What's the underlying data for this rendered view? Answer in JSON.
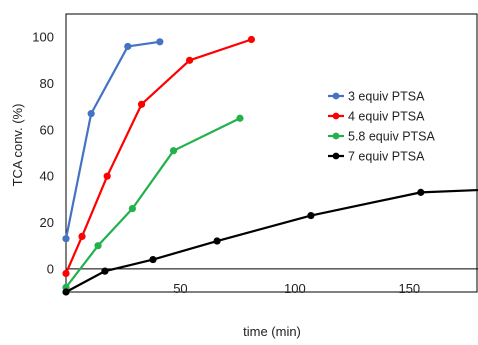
{
  "chart_data": {
    "type": "line",
    "title": "",
    "xlabel": "time (min)",
    "ylabel": "TCA conv. (%)",
    "xlim": [
      0,
      180
    ],
    "ylim": [
      -10,
      110
    ],
    "xticks": [
      50,
      100,
      150
    ],
    "yticks": [
      0,
      20,
      40,
      60,
      80,
      100
    ],
    "grid": false,
    "legend_position": "right",
    "series": [
      {
        "name": "3 equiv PTSA",
        "color": "#4472C4",
        "x": [
          0,
          11,
          27,
          41
        ],
        "y": [
          13,
          67,
          96,
          98
        ]
      },
      {
        "name": "4 equiv PTSA",
        "color": "#FF0000",
        "x": [
          0,
          7,
          18,
          33,
          54,
          81
        ],
        "y": [
          -2,
          14,
          40,
          71,
          90,
          99
        ]
      },
      {
        "name": "5.8 equiv PTSA",
        "color": "#22B14C",
        "x": [
          0,
          14,
          29,
          47,
          76
        ],
        "y": [
          -8,
          10,
          26,
          51,
          65
        ]
      },
      {
        "name": "7 equiv PTSA",
        "color": "#000000",
        "x": [
          0,
          17,
          38,
          66,
          107,
          155,
          180
        ],
        "y": [
          -10,
          -1,
          4,
          12,
          23,
          33,
          34
        ],
        "markers_through": 5
      }
    ]
  }
}
